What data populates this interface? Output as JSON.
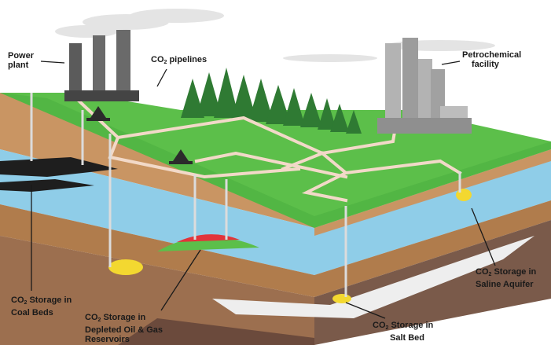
{
  "labels": {
    "power_plant": [
      "Power",
      "plant"
    ],
    "pipelines": {
      "prefix": "CO",
      "sub": "2",
      "rest": " pipelines"
    },
    "petrochemical": [
      "Petrochemical",
      "facility"
    ],
    "coal_beds": {
      "prefix": "CO",
      "sub": "2",
      "rest": " Storage in",
      "line2": "Coal Beds"
    },
    "depleted": {
      "prefix": "CO",
      "sub": "2",
      "rest": " Storage in",
      "line2": "Depleted Oil & Gas",
      "line3": "Reservoirs"
    },
    "saline": {
      "prefix": "CO",
      "sub": "2",
      "rest": " Storage in",
      "line2": "Saline Aquifer"
    },
    "salt_bed": {
      "prefix": "CO",
      "sub": "2",
      "rest": " Storage in",
      "line2": "Salt Bed"
    }
  },
  "colors": {
    "grass_top": "#5cbf4a",
    "grass_dark": "#3f9a36",
    "pipeline": "#f2d9c8",
    "soil_upper": "#c99563",
    "soil_mid": "#b07c4c",
    "aquifer_blue": "#8fcde8",
    "coal": "#1e1e1e",
    "rock_dark": "#7a5a4a",
    "salt": "#eeeeee",
    "trees": "#2f7a33"
  }
}
